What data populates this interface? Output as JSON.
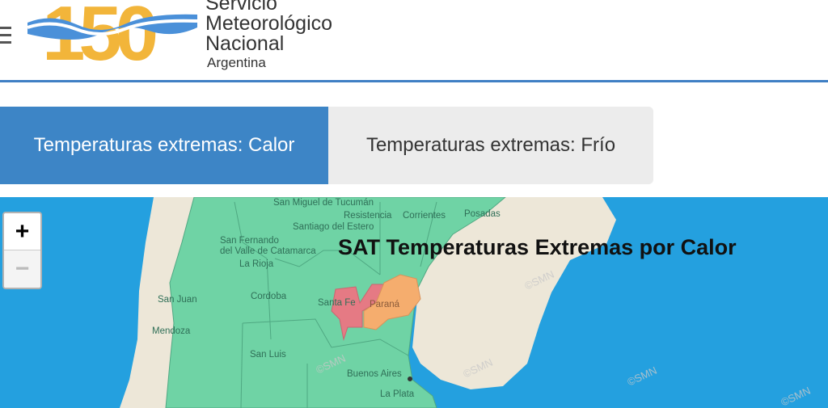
{
  "header": {
    "logo_number": "150",
    "brand_line1": "Servicio",
    "brand_line2": "Meteorológico",
    "brand_line3": "Nacional",
    "brand_sub": "Argentina"
  },
  "tabs": [
    {
      "label": "Temperaturas extremas: Calor",
      "active": true
    },
    {
      "label": "Temperaturas extremas: Frío",
      "active": false
    }
  ],
  "map": {
    "title": "SAT Temperaturas Extremas por Calor",
    "zoom_in": "+",
    "zoom_out": "−",
    "watermark": "©SMN",
    "cities": [
      "San Miguel de Tucumán",
      "Resistencia",
      "Corrientes",
      "Posadas",
      "Santiago del Estero",
      "San Fernando",
      "del Valle de Catamarca",
      "La Rioja",
      "San Juan",
      "Cordoba",
      "Santa Fe",
      "Paraná",
      "Mendoza",
      "San Luis",
      "Buenos Aires",
      "La Plata"
    ],
    "colors": {
      "ocean": "#24a0df",
      "land": "#ede7d8",
      "no_alert": "#6fd3a5",
      "yellow_orange": "#f5ad6e",
      "red": "#e57a84"
    }
  }
}
